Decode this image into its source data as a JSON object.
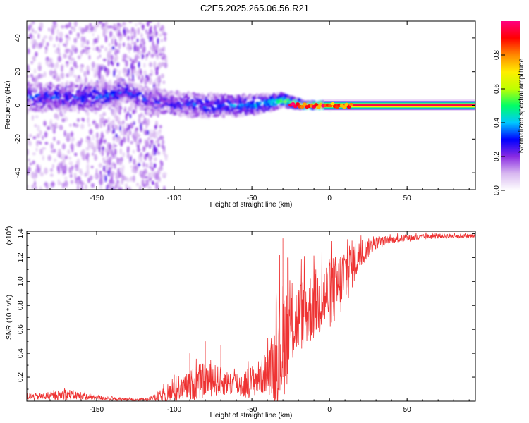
{
  "page_title": "C2E5.2025.265.06.56.R21",
  "chart_data": [
    {
      "type": "heatmap",
      "title": "C2E5.2025.265.06.56.R21",
      "xlabel": "Height of straight line (km)",
      "ylabel": "Frequency (Hz)",
      "xlim": [
        -195,
        94
      ],
      "ylim": [
        -50,
        50
      ],
      "xticks": [
        -150,
        -100,
        -50,
        0,
        50
      ],
      "yticks": [
        -40,
        -20,
        0,
        20,
        40
      ],
      "colorbar": {
        "label": "Normalized spectral amplitude",
        "range": [
          0.0,
          1.0
        ],
        "ticks": [
          0.0,
          0.2,
          0.4,
          0.6,
          0.8
        ],
        "tick_labels": [
          "0.0",
          "0.2",
          "0.4",
          "0.6",
          "0.8"
        ],
        "colors": [
          "#ffffff",
          "#d8b8f0",
          "#8a2be2",
          "#0000ff",
          "#00c8ff",
          "#00ff66",
          "#bfff00",
          "#ffee00",
          "#ff8800",
          "#ff0000",
          "#ff0080"
        ]
      },
      "ridge": {
        "description": "dominant frequency band vs height",
        "points": [
          {
            "x": -195,
            "f_center": 5,
            "f_halfwidth": 8,
            "amplitude": 0.3
          },
          {
            "x": -150,
            "f_center": 5,
            "f_halfwidth": 8,
            "amplitude": 0.3
          },
          {
            "x": -130,
            "f_center": 8,
            "f_halfwidth": 6,
            "amplitude": 0.3
          },
          {
            "x": -115,
            "f_center": 2,
            "f_halfwidth": 7,
            "amplitude": 0.25
          },
          {
            "x": -80,
            "f_center": 0,
            "f_halfwidth": 7,
            "amplitude": 0.3
          },
          {
            "x": -50,
            "f_center": 0,
            "f_halfwidth": 6,
            "amplitude": 0.35
          },
          {
            "x": -30,
            "f_center": 3,
            "f_halfwidth": 4,
            "amplitude": 0.5
          },
          {
            "x": -15,
            "f_center": 0,
            "f_halfwidth": 2,
            "amplitude": 0.8
          },
          {
            "x": 15,
            "f_center": 0,
            "f_halfwidth": 1.5,
            "amplitude": 1.0
          },
          {
            "x": 94,
            "f_center": 0,
            "f_halfwidth": 1.5,
            "amplitude": 1.0
          }
        ]
      }
    },
    {
      "type": "line",
      "title": "",
      "xlabel": "Height of straight line (km)",
      "ylabel": "SNR (10 * v/v)",
      "yscale_label_prefix": "(x10",
      "yscale_label_exponent": "4",
      "yscale_label_suffix": ")",
      "xlim": [
        -195,
        94
      ],
      "ylim": [
        0,
        1.42
      ],
      "xticks": [
        -150,
        -100,
        -50,
        0,
        50
      ],
      "yticks": [
        0.2,
        0.4,
        0.6,
        0.8,
        1.0,
        1.2,
        1.4
      ],
      "line_color": "#ee3333",
      "envelope": {
        "x": [
          -195,
          -180,
          -170,
          -160,
          -140,
          -125,
          -115,
          -105,
          -95,
          -85,
          -75,
          -65,
          -55,
          -45,
          -38,
          -35,
          -32,
          -30,
          -28,
          -25,
          -20,
          -15,
          -10,
          -5,
          0,
          5,
          10,
          15,
          20,
          25,
          30,
          40,
          50,
          60,
          70,
          80,
          94
        ],
        "mean": [
          0.04,
          0.04,
          0.06,
          0.04,
          0.02,
          0.01,
          0.02,
          0.05,
          0.1,
          0.16,
          0.18,
          0.15,
          0.14,
          0.2,
          0.25,
          0.3,
          0.45,
          0.5,
          0.55,
          0.6,
          0.7,
          0.75,
          0.8,
          0.85,
          0.9,
          0.95,
          1.05,
          1.15,
          1.22,
          1.28,
          1.32,
          1.35,
          1.36,
          1.37,
          1.38,
          1.38,
          1.38
        ],
        "spread": [
          0.03,
          0.03,
          0.05,
          0.03,
          0.015,
          0.01,
          0.015,
          0.08,
          0.1,
          0.15,
          0.14,
          0.1,
          0.12,
          0.15,
          0.2,
          0.4,
          0.5,
          0.5,
          0.45,
          0.35,
          0.3,
          0.3,
          0.3,
          0.3,
          0.3,
          0.3,
          0.28,
          0.2,
          0.12,
          0.08,
          0.05,
          0.03,
          0.03,
          0.025,
          0.02,
          0.02,
          0.02
        ]
      },
      "peaks": [
        {
          "x": -30,
          "y": 1.36
        },
        {
          "x": -100,
          "y": 0.22
        },
        {
          "x": -90,
          "y": 0.4
        },
        {
          "x": -80,
          "y": 0.5
        },
        {
          "x": -70,
          "y": 0.47
        },
        {
          "x": -27,
          "y": 1.2
        }
      ]
    }
  ]
}
